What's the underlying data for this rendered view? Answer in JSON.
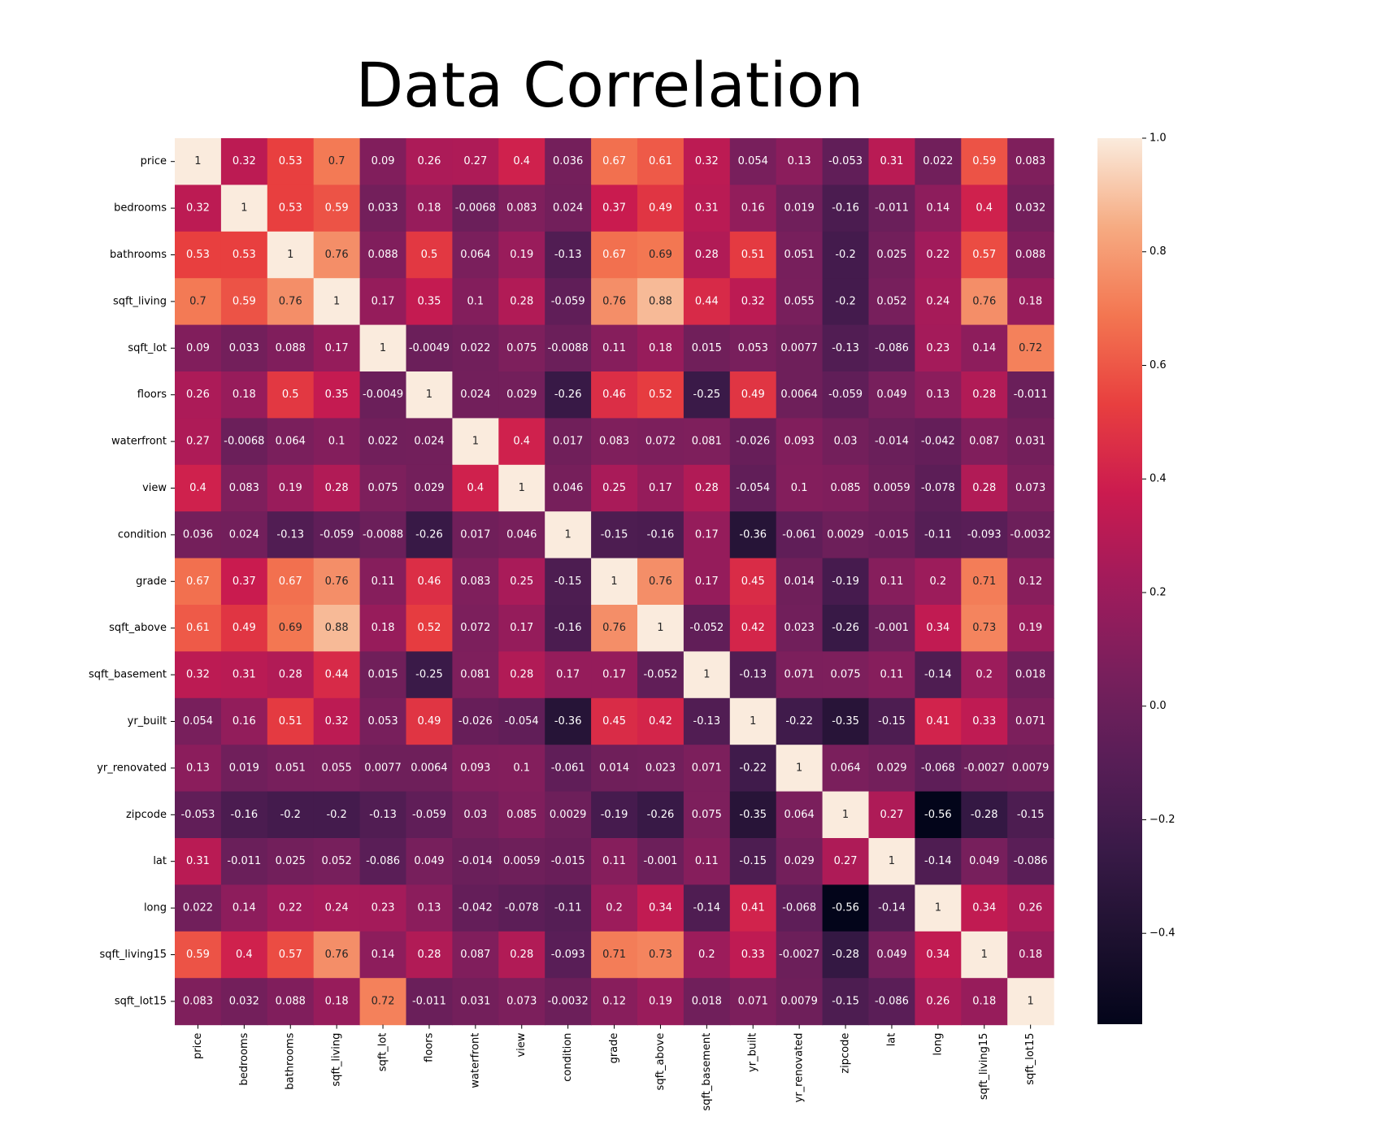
{
  "chart_data": {
    "type": "heatmap",
    "title": "Data Correlation",
    "xlabel": "",
    "ylabel": "",
    "labels": [
      "price",
      "bedrooms",
      "bathrooms",
      "sqft_living",
      "sqft_lot",
      "floors",
      "waterfront",
      "view",
      "condition",
      "grade",
      "sqft_above",
      "sqft_basement",
      "yr_built",
      "yr_renovated",
      "zipcode",
      "lat",
      "long",
      "sqft_living15",
      "sqft_lot15"
    ],
    "values": [
      [
        "1",
        "0.32",
        "0.53",
        "0.7",
        "0.09",
        "0.26",
        "0.27",
        "0.4",
        "0.036",
        "0.67",
        "0.61",
        "0.32",
        "0.054",
        "0.13",
        "-0.053",
        "0.31",
        "0.022",
        "0.59",
        "0.083"
      ],
      [
        "0.32",
        "1",
        "0.53",
        "0.59",
        "0.033",
        "0.18",
        "-0.0068",
        "0.083",
        "0.024",
        "0.37",
        "0.49",
        "0.31",
        "0.16",
        "0.019",
        "-0.16",
        "-0.011",
        "0.14",
        "0.4",
        "0.032"
      ],
      [
        "0.53",
        "0.53",
        "1",
        "0.76",
        "0.088",
        "0.5",
        "0.064",
        "0.19",
        "-0.13",
        "0.67",
        "0.69",
        "0.28",
        "0.51",
        "0.051",
        "-0.2",
        "0.025",
        "0.22",
        "0.57",
        "0.088"
      ],
      [
        "0.7",
        "0.59",
        "0.76",
        "1",
        "0.17",
        "0.35",
        "0.1",
        "0.28",
        "-0.059",
        "0.76",
        "0.88",
        "0.44",
        "0.32",
        "0.055",
        "-0.2",
        "0.052",
        "0.24",
        "0.76",
        "0.18"
      ],
      [
        "0.09",
        "0.033",
        "0.088",
        "0.17",
        "1",
        "-0.0049",
        "0.022",
        "0.075",
        "-0.0088",
        "0.11",
        "0.18",
        "0.015",
        "0.053",
        "0.0077",
        "-0.13",
        "-0.086",
        "0.23",
        "0.14",
        "0.72"
      ],
      [
        "0.26",
        "0.18",
        "0.5",
        "0.35",
        "-0.0049",
        "1",
        "0.024",
        "0.029",
        "-0.26",
        "0.46",
        "0.52",
        "-0.25",
        "0.49",
        "0.0064",
        "-0.059",
        "0.049",
        "0.13",
        "0.28",
        "-0.011"
      ],
      [
        "0.27",
        "-0.0068",
        "0.064",
        "0.1",
        "0.022",
        "0.024",
        "1",
        "0.4",
        "0.017",
        "0.083",
        "0.072",
        "0.081",
        "-0.026",
        "0.093",
        "0.03",
        "-0.014",
        "-0.042",
        "0.087",
        "0.031"
      ],
      [
        "0.4",
        "0.083",
        "0.19",
        "0.28",
        "0.075",
        "0.029",
        "0.4",
        "1",
        "0.046",
        "0.25",
        "0.17",
        "0.28",
        "-0.054",
        "0.1",
        "0.085",
        "0.0059",
        "-0.078",
        "0.28",
        "0.073"
      ],
      [
        "0.036",
        "0.024",
        "-0.13",
        "-0.059",
        "-0.0088",
        "-0.26",
        "0.017",
        "0.046",
        "1",
        "-0.15",
        "-0.16",
        "0.17",
        "-0.36",
        "-0.061",
        "0.0029",
        "-0.015",
        "-0.11",
        "-0.093",
        "-0.0032"
      ],
      [
        "0.67",
        "0.37",
        "0.67",
        "0.76",
        "0.11",
        "0.46",
        "0.083",
        "0.25",
        "-0.15",
        "1",
        "0.76",
        "0.17",
        "0.45",
        "0.014",
        "-0.19",
        "0.11",
        "0.2",
        "0.71",
        "0.12"
      ],
      [
        "0.61",
        "0.49",
        "0.69",
        "0.88",
        "0.18",
        "0.52",
        "0.072",
        "0.17",
        "-0.16",
        "0.76",
        "1",
        "-0.052",
        "0.42",
        "0.023",
        "-0.26",
        "-0.001",
        "0.34",
        "0.73",
        "0.19"
      ],
      [
        "0.32",
        "0.31",
        "0.28",
        "0.44",
        "0.015",
        "-0.25",
        "0.081",
        "0.28",
        "0.17",
        "0.17",
        "-0.052",
        "1",
        "-0.13",
        "0.071",
        "0.075",
        "0.11",
        "-0.14",
        "0.2",
        "0.018"
      ],
      [
        "0.054",
        "0.16",
        "0.51",
        "0.32",
        "0.053",
        "0.49",
        "-0.026",
        "-0.054",
        "-0.36",
        "0.45",
        "0.42",
        "-0.13",
        "1",
        "-0.22",
        "-0.35",
        "-0.15",
        "0.41",
        "0.33",
        "0.071"
      ],
      [
        "0.13",
        "0.019",
        "0.051",
        "0.055",
        "0.0077",
        "0.0064",
        "0.093",
        "0.1",
        "-0.061",
        "0.014",
        "0.023",
        "0.071",
        "-0.22",
        "1",
        "0.064",
        "0.029",
        "-0.068",
        "-0.0027",
        "0.0079"
      ],
      [
        "-0.053",
        "-0.16",
        "-0.2",
        "-0.2",
        "-0.13",
        "-0.059",
        "0.03",
        "0.085",
        "0.0029",
        "-0.19",
        "-0.26",
        "0.075",
        "-0.35",
        "0.064",
        "1",
        "0.27",
        "-0.56",
        "-0.28",
        "-0.15"
      ],
      [
        "0.31",
        "-0.011",
        "0.025",
        "0.052",
        "-0.086",
        "0.049",
        "-0.014",
        "0.0059",
        "-0.015",
        "0.11",
        "-0.001",
        "0.11",
        "-0.15",
        "0.029",
        "0.27",
        "1",
        "-0.14",
        "0.049",
        "-0.086"
      ],
      [
        "0.022",
        "0.14",
        "0.22",
        "0.24",
        "0.23",
        "0.13",
        "-0.042",
        "-0.078",
        "-0.11",
        "0.2",
        "0.34",
        "-0.14",
        "0.41",
        "-0.068",
        "-0.56",
        "-0.14",
        "1",
        "0.34",
        "0.26"
      ],
      [
        "0.59",
        "0.4",
        "0.57",
        "0.76",
        "0.14",
        "0.28",
        "0.087",
        "0.28",
        "-0.093",
        "0.71",
        "0.73",
        "0.2",
        "0.33",
        "-0.0027",
        "-0.28",
        "0.049",
        "0.34",
        "1",
        "0.18"
      ],
      [
        "0.083",
        "0.032",
        "0.088",
        "0.18",
        "0.72",
        "-0.011",
        "0.031",
        "0.073",
        "-0.0032",
        "0.12",
        "0.19",
        "0.018",
        "0.071",
        "0.0079",
        "-0.15",
        "-0.086",
        "0.26",
        "0.18",
        "1"
      ]
    ],
    "colorbar": {
      "colormap": "rocket",
      "vmin": -0.56,
      "vmax": 1.0,
      "ticks": [
        1.0,
        0.8,
        0.6,
        0.4,
        0.2,
        0.0,
        -0.2,
        -0.4
      ],
      "tick_labels": [
        "1.0",
        "0.8",
        "0.6",
        "0.4",
        "0.2",
        "0.0",
        "−0.2",
        "−0.4"
      ]
    },
    "grid": false,
    "legend": "colorbar-right"
  }
}
